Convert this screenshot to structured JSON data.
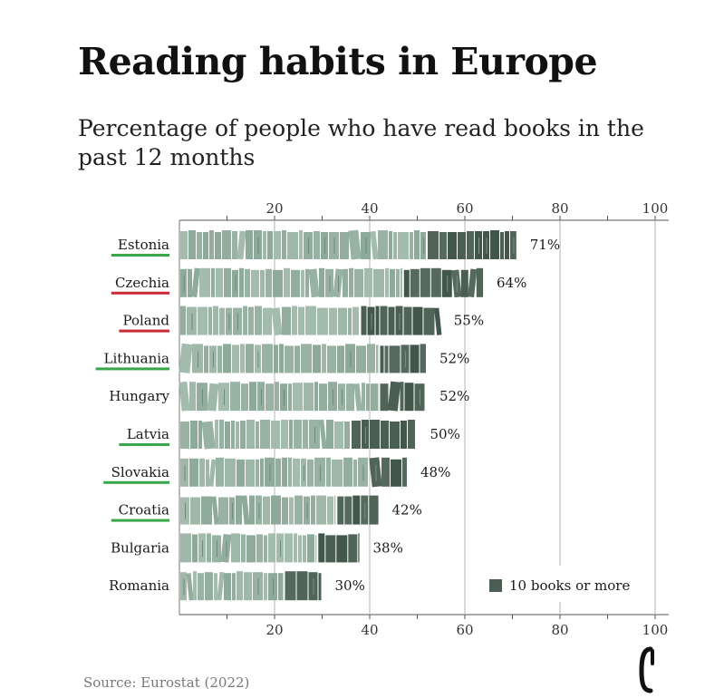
{
  "title": "Reading habits in Europe",
  "subtitle": "Percentage of people who have read books in the past 12 months",
  "source": "Source: Eurostat (2022)",
  "colors": {
    "light_books": "#98b3a4",
    "dark_books": "#4a5e54",
    "gridline": "#b5b5b5",
    "underline_green": "#3aa64a",
    "underline_red": "#cc2a36"
  },
  "legend": {
    "dark_label": "10 books or more"
  },
  "chart_data": {
    "type": "bar",
    "orientation": "horizontal",
    "title": "Reading habits in Europe",
    "subtitle": "Percentage of people who have read books in the past 12 months",
    "xlim": [
      0,
      100
    ],
    "x_ticks": [
      20,
      40,
      60,
      80,
      100
    ],
    "x_ticks_position": "top and bottom",
    "grid": true,
    "legend_placement": "bottom-right",
    "categories": [
      "Estonia",
      "Czechia",
      "Poland",
      "Lithuania",
      "Hungary",
      "Latvia",
      "Slovakia",
      "Croatia",
      "Bulgaria",
      "Romania"
    ],
    "values": [
      71,
      64,
      55,
      52,
      52,
      50,
      48,
      42,
      38,
      30
    ],
    "value_labels": [
      "71%",
      "64%",
      "55%",
      "52%",
      "52%",
      "50%",
      "48%",
      "42%",
      "38%",
      "30%"
    ],
    "series": [
      {
        "values": [
          52,
          47,
          38,
          42,
          42,
          36,
          40,
          33,
          29,
          22
        ]
      },
      {
        "name": "10 books or more",
        "values": [
          19,
          17,
          17,
          10,
          10,
          14,
          8,
          9,
          9,
          8
        ]
      }
    ],
    "underline": [
      "green",
      "red",
      "red",
      "green",
      "none",
      "green",
      "green",
      "green",
      "none",
      "none"
    ]
  }
}
